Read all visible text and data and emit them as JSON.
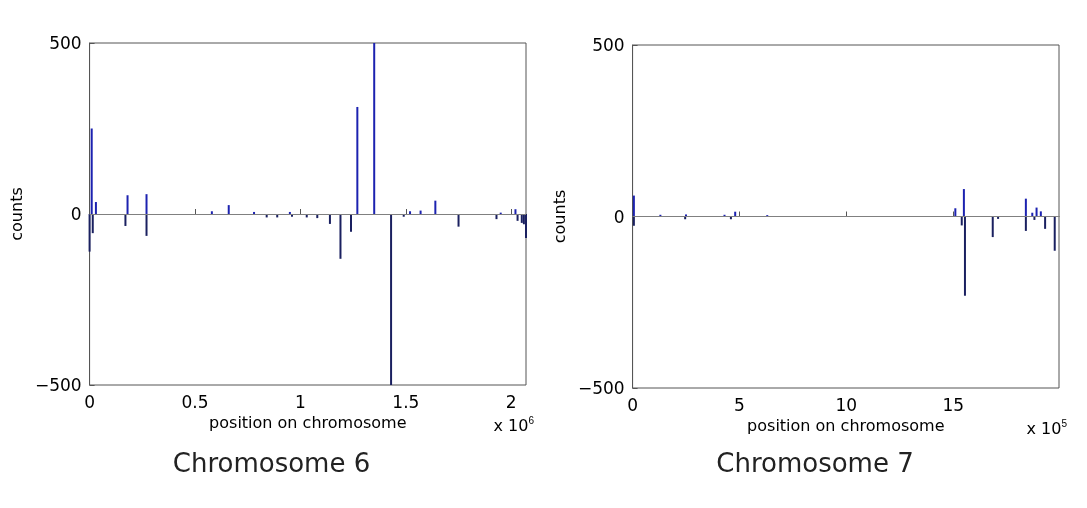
{
  "chart_data": [
    {
      "type": "bar",
      "title": "Chromosome 6",
      "xlabel": "position on chromosome",
      "ylabel": "counts",
      "annotations": [
        "x 10$^{6}$"
      ],
      "xlim": [
        0,
        2.07
      ],
      "xticks": [
        0,
        0.5,
        1,
        1.5,
        2
      ],
      "ylim": [
        -500,
        500
      ],
      "yticks": [
        -500,
        0,
        500
      ],
      "grid": false,
      "ref_lines": [
        {
          "axis": "y",
          "value": 0,
          "color": "#808080"
        }
      ],
      "series": [
        {
          "color": "#1c22b0",
          "x": [
            0.01,
            0.03,
            0.18,
            0.27,
            0.58,
            0.66,
            0.78,
            0.95,
            1.27,
            1.35,
            1.52,
            1.57,
            1.64,
            1.95,
            2.02
          ],
          "values": [
            250,
            35,
            55,
            58,
            8,
            26,
            6,
            6,
            313,
            500,
            8,
            10,
            39,
            4,
            14
          ]
        },
        {
          "color": "#1a2060",
          "x": [
            0.0,
            0.015,
            0.17,
            0.27,
            0.42,
            0.84,
            0.89,
            0.96,
            1.03,
            1.08,
            1.14,
            1.19,
            1.24,
            1.43,
            1.49,
            1.75,
            1.93,
            2.03,
            2.05,
            2.06,
            2.07
          ],
          "values": [
            -110,
            -56,
            -35,
            -64,
            null,
            -10,
            -10,
            -8,
            -10,
            -12,
            -29,
            -131,
            -52,
            -500,
            -8,
            -37,
            -15,
            -20,
            -26,
            -30,
            -70
          ]
        }
      ]
    },
    {
      "type": "bar",
      "title": "Chromosome 7",
      "xlabel": "position on chromosome",
      "ylabel": "counts",
      "annotations": [
        "x 10$^{5}$"
      ],
      "xlim": [
        0,
        19.95
      ],
      "xticks": [
        0,
        5,
        10,
        15
      ],
      "ylim": [
        -500,
        500
      ],
      "yticks": [
        -500,
        0,
        500
      ],
      "grid": false,
      "ref_lines": [
        {
          "axis": "y",
          "value": 0,
          "color": "#808080"
        }
      ],
      "series": [
        {
          "color": "#1c22b0",
          "x": [
            0.06,
            1.3,
            2.5,
            4.3,
            4.8,
            6.3,
            15.1,
            15.5,
            18.4,
            18.7,
            18.9,
            19.1
          ],
          "values": [
            61,
            5,
            6,
            5,
            14,
            4,
            24,
            80,
            52,
            11,
            26,
            15
          ]
        },
        {
          "color": "#1a2060",
          "x": [
            0.06,
            2.46,
            4.6,
            15.4,
            15.55,
            16.85,
            17.1,
            18.4,
            18.8,
            19.3,
            19.75
          ],
          "values": [
            -27,
            -8,
            -8,
            -26,
            -231,
            -60,
            -7,
            -42,
            -10,
            -36,
            -100
          ]
        }
      ]
    }
  ]
}
